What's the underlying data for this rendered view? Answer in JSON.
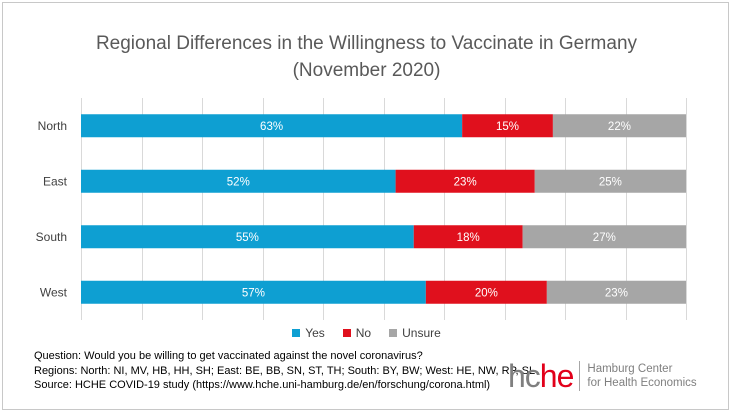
{
  "chart_data": {
    "type": "bar",
    "orientation": "horizontal",
    "stacked": true,
    "title": "Regional Differences in the Willingness to Vaccinate in Germany",
    "subtitle": "(November 2020)",
    "categories": [
      "North",
      "East",
      "South",
      "West"
    ],
    "series": [
      {
        "name": "Yes",
        "values": [
          63,
          52,
          55,
          57
        ],
        "labels": [
          "63%",
          "52%",
          "55%",
          "57%"
        ],
        "color": "#0e9fd2"
      },
      {
        "name": "No",
        "values": [
          15,
          23,
          18,
          20
        ],
        "labels": [
          "15%",
          "23%",
          "18%",
          "20%"
        ],
        "color": "#e0101d"
      },
      {
        "name": "Unsure",
        "values": [
          22,
          25,
          27,
          23
        ],
        "labels": [
          "22%",
          "25%",
          "27%",
          "23%"
        ],
        "color": "#a6a6a6"
      }
    ],
    "xlim": [
      0,
      100
    ],
    "grid": true,
    "legend_position": "bottom"
  },
  "notes": {
    "question": "Question: Would you be willing to get vaccinated against the novel coronavirus?",
    "regions": "Regions: North: NI, MV, HB, HH, SH; East: BE, BB, SN, ST, TH; South: BY, BW; West: HE, NW, RP, SL",
    "source": "Source: HCHE COVID-19 study (https://www.hche.uni-hamburg.de/en/forschung/corona.html)"
  },
  "logo": {
    "mark_part1": "hc",
    "mark_part2": "he",
    "line1": "Hamburg Center",
    "line2": "for Health Economics"
  }
}
